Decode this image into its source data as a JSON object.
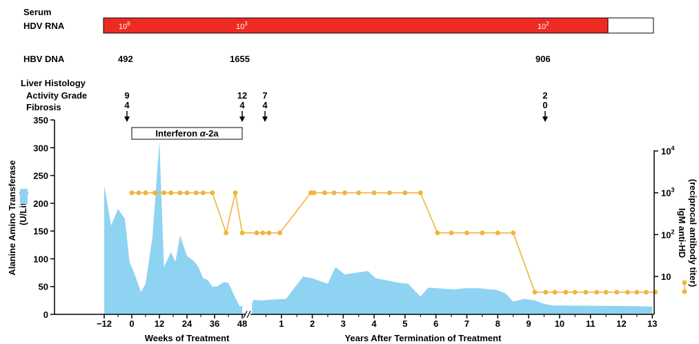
{
  "chart_data": {
    "type": "area",
    "header": {
      "serum": "Serum",
      "hdv_rna": {
        "label": "HDV RNA",
        "levels": [
          {
            "base": "10",
            "exp": "6"
          },
          {
            "base": "10",
            "exp": "3"
          },
          {
            "base": "10",
            "exp": "2"
          }
        ]
      },
      "hbv_dna": {
        "label": "HBV DNA",
        "values": [
          "492",
          "1655",
          "906"
        ]
      },
      "histology": {
        "title": "Liver Histology",
        "activity_label": "Activity Grade",
        "fibrosis_label": "Fibrosis",
        "biopsies": [
          {
            "activity": "9",
            "fibrosis": "4"
          },
          {
            "activity": "12",
            "fibrosis": "4"
          },
          {
            "activity": "7",
            "fibrosis": "4"
          },
          {
            "activity": "2",
            "fibrosis": "0"
          }
        ]
      }
    },
    "treatment_label": {
      "base": "Interferon ",
      "greek": "α",
      "suffix": "-2a"
    },
    "left_axis": {
      "label": "Alanine Amino Transferase (U/Liter)",
      "ticks": [
        "0",
        "50",
        "100",
        "150",
        "200",
        "250",
        "300",
        "350"
      ],
      "ylim": [
        0,
        350
      ]
    },
    "right_axis": {
      "label": "IgM anti-HD (reciprocal antibody titer)",
      "ticks": [
        {
          "base": "10",
          "exp": ""
        },
        {
          "base": "10",
          "exp": "2"
        },
        {
          "base": "10",
          "exp": "3"
        },
        {
          "base": "10",
          "exp": "4"
        }
      ],
      "scale": "log"
    },
    "weeks_axis": {
      "label": "Weeks of Treatment",
      "ticks": [
        "−12",
        "0",
        "12",
        "24",
        "36",
        "48"
      ]
    },
    "years_axis": {
      "label": "Years After Termination of Treatment",
      "ticks": [
        "1",
        "2",
        "3",
        "4",
        "5",
        "6",
        "7",
        "8",
        "9",
        "10",
        "11",
        "12",
        "13"
      ]
    },
    "alt_series": {
      "name": "Alanine Amino Transferase",
      "color": "#8fd3f2",
      "weeks": [
        [
          -12,
          232
        ],
        [
          -9,
          160
        ],
        [
          -6,
          190
        ],
        [
          -3,
          172
        ],
        [
          -1,
          95
        ],
        [
          1,
          75
        ],
        [
          4,
          40
        ],
        [
          6,
          55
        ],
        [
          9,
          140
        ],
        [
          12,
          312
        ],
        [
          14,
          85
        ],
        [
          17,
          112
        ],
        [
          19,
          95
        ],
        [
          21,
          142
        ],
        [
          24,
          105
        ],
        [
          27,
          96
        ],
        [
          29,
          85
        ],
        [
          31,
          65
        ],
        [
          33,
          62
        ],
        [
          35,
          50
        ],
        [
          37,
          50
        ],
        [
          40,
          58
        ],
        [
          42,
          57
        ],
        [
          45,
          30
        ],
        [
          47,
          14
        ],
        [
          48,
          16
        ]
      ],
      "years": [
        [
          0.05,
          20
        ],
        [
          0.1,
          26
        ],
        [
          0.35,
          25
        ],
        [
          0.8,
          27
        ],
        [
          1.15,
          28
        ],
        [
          1.7,
          68
        ],
        [
          2.0,
          65
        ],
        [
          2.5,
          55
        ],
        [
          2.75,
          85
        ],
        [
          3.05,
          72
        ],
        [
          3.8,
          78
        ],
        [
          4.05,
          65
        ],
        [
          4.8,
          57
        ],
        [
          5.1,
          55
        ],
        [
          5.5,
          32
        ],
        [
          5.75,
          48
        ],
        [
          6.6,
          45
        ],
        [
          6.95,
          47
        ],
        [
          7.4,
          47
        ],
        [
          7.95,
          44
        ],
        [
          8.25,
          38
        ],
        [
          8.5,
          23
        ],
        [
          8.85,
          28
        ],
        [
          9.2,
          25
        ],
        [
          9.5,
          19
        ],
        [
          9.8,
          16
        ],
        [
          12.2,
          15
        ],
        [
          13.0,
          14
        ]
      ]
    },
    "igm_series": {
      "name": "IgM anti-HD",
      "color": "#f2b33a",
      "weeks": [
        [
          0,
          1000
        ],
        [
          3,
          1000
        ],
        [
          6,
          1000
        ],
        [
          10,
          1000
        ],
        [
          14,
          1000
        ],
        [
          17,
          1000
        ],
        [
          21,
          1000
        ],
        [
          24,
          1000
        ],
        [
          28,
          1000
        ],
        [
          31,
          1000
        ],
        [
          35,
          1000
        ],
        [
          41,
          110
        ],
        [
          45,
          1000
        ],
        [
          48,
          110
        ]
      ],
      "years": [
        [
          0.2,
          110
        ],
        [
          0.4,
          110
        ],
        [
          0.6,
          110
        ],
        [
          0.95,
          110
        ],
        [
          1.95,
          1000
        ],
        [
          2.05,
          1000
        ],
        [
          2.4,
          1000
        ],
        [
          2.7,
          1000
        ],
        [
          3.05,
          1000
        ],
        [
          3.5,
          1000
        ],
        [
          4.0,
          1000
        ],
        [
          4.5,
          1000
        ],
        [
          5.0,
          1000
        ],
        [
          5.5,
          1000
        ],
        [
          6.05,
          110
        ],
        [
          6.5,
          110
        ],
        [
          7.0,
          110
        ],
        [
          7.5,
          110
        ],
        [
          8.0,
          110
        ],
        [
          8.5,
          110
        ],
        [
          9.2,
          4.2
        ],
        [
          9.55,
          4.2
        ],
        [
          9.85,
          4.2
        ],
        [
          10.2,
          4.2
        ],
        [
          10.5,
          4.2
        ],
        [
          10.85,
          4.2
        ],
        [
          11.2,
          4.2
        ],
        [
          11.5,
          4.2
        ],
        [
          11.85,
          4.2
        ],
        [
          12.2,
          4.2
        ],
        [
          12.5,
          4.2
        ],
        [
          12.8,
          4.2
        ],
        [
          13.1,
          4.2
        ]
      ]
    },
    "colors": {
      "hdv_bar": "#ee2b22",
      "alt": "#8fd3f2",
      "igm": "#f2b33a"
    }
  }
}
